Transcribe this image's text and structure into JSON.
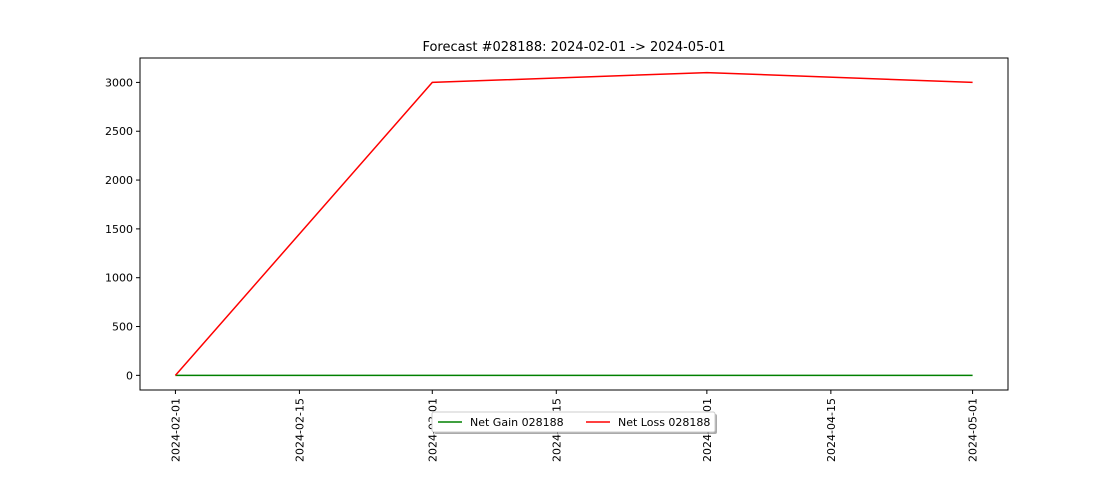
{
  "chart_data": {
    "type": "line",
    "title": "Forecast #028188: 2024-02-01 -> 2024-05-01",
    "x": [
      "2024-02-01",
      "2024-03-01",
      "2024-04-01",
      "2024-05-01"
    ],
    "xlim": [
      "2024-01-28",
      "2024-05-05"
    ],
    "xticks": [
      "2024-02-01",
      "2024-02-15",
      "2024-03-01",
      "2024-03-15",
      "2024-04-01",
      "2024-04-15",
      "2024-05-01"
    ],
    "ylim": [
      -150,
      3250
    ],
    "yticks": [
      0,
      500,
      1000,
      1500,
      2000,
      2500,
      3000
    ],
    "grid": false,
    "legend_position": "bottom-center",
    "series": [
      {
        "name": "Net Gain 028188",
        "color": "#008000",
        "values": [
          0,
          0,
          0,
          0
        ]
      },
      {
        "name": "Net Loss 028188",
        "color": "#ff0000",
        "values": [
          0,
          3000,
          3100,
          3000
        ]
      }
    ]
  }
}
